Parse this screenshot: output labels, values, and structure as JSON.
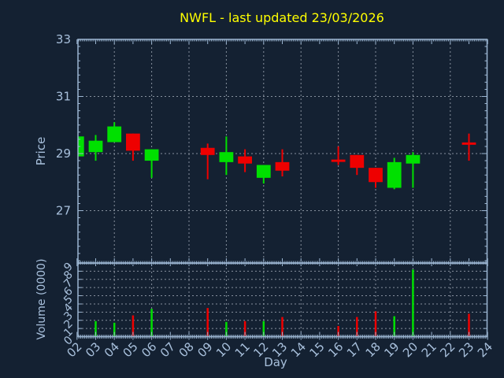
{
  "title": "NWFL - last updated 23/03/2026",
  "colors": {
    "background": "#142132",
    "axis": "#9cb6d2",
    "tick_label": "#a8c0dc",
    "title": "#ffff00",
    "grid": "#9aa4b0",
    "up": "#00e000",
    "down": "#ee0000"
  },
  "axes": {
    "x": {
      "label": "Day",
      "tick_labels": [
        "02",
        "03",
        "04",
        "05",
        "06",
        "07",
        "08",
        "09",
        "10",
        "11",
        "12",
        "13",
        "14",
        "15",
        "16",
        "17",
        "18",
        "19",
        "20",
        "21",
        "22",
        "23",
        "24"
      ],
      "tick_days": [
        2,
        3,
        4,
        5,
        6,
        7,
        8,
        9,
        10,
        11,
        12,
        13,
        14,
        15,
        16,
        17,
        18,
        19,
        20,
        21,
        22,
        23,
        24
      ],
      "gridline_days": [
        4,
        6,
        8,
        10,
        12,
        14,
        16,
        18,
        20,
        22
      ]
    },
    "price": {
      "label": "Price",
      "ticks": [
        27,
        29,
        31,
        33
      ],
      "gridline_values": [
        27,
        29,
        31
      ],
      "range": [
        25.2,
        33.0
      ]
    },
    "volume": {
      "label": "Volume (0000)",
      "ticks": [
        0,
        1,
        2,
        3,
        4,
        5,
        6,
        7,
        8,
        9
      ],
      "gridline_values": [
        1,
        2,
        3,
        4,
        5,
        6,
        7,
        8
      ],
      "range": [
        0,
        9
      ]
    }
  },
  "chart_data": [
    {
      "type": "candlestick",
      "name": "price",
      "x_unit": "day of 03/2026",
      "series": [
        {
          "day": 2,
          "open": 28.9,
          "high": 29.6,
          "low": 28.9,
          "close": 29.6,
          "color": "up"
        },
        {
          "day": 3,
          "open": 29.05,
          "high": 29.65,
          "low": 28.75,
          "close": 29.45,
          "color": "up"
        },
        {
          "day": 4,
          "open": 29.4,
          "high": 30.1,
          "low": 29.4,
          "close": 29.95,
          "color": "up"
        },
        {
          "day": 5,
          "open": 29.7,
          "high": 29.7,
          "low": 28.75,
          "close": 29.1,
          "color": "down"
        },
        {
          "day": 6,
          "open": 28.75,
          "high": 29.15,
          "low": 28.15,
          "close": 29.15,
          "color": "up"
        },
        {
          "day": 9,
          "open": 29.2,
          "high": 29.35,
          "low": 28.1,
          "close": 28.95,
          "color": "down"
        },
        {
          "day": 10,
          "open": 28.7,
          "high": 29.6,
          "low": 28.25,
          "close": 29.05,
          "color": "up"
        },
        {
          "day": 11,
          "open": 28.9,
          "high": 29.15,
          "low": 28.35,
          "close": 28.65,
          "color": "down"
        },
        {
          "day": 12,
          "open": 28.15,
          "high": 28.6,
          "low": 27.95,
          "close": 28.6,
          "color": "up"
        },
        {
          "day": 13,
          "open": 28.7,
          "high": 29.15,
          "low": 28.2,
          "close": 28.4,
          "color": "down"
        },
        {
          "day": 16,
          "open": 28.75,
          "high": 29.25,
          "low": 28.6,
          "close": 28.75,
          "color": "down"
        },
        {
          "day": 17,
          "open": 28.95,
          "high": 28.95,
          "low": 28.25,
          "close": 28.5,
          "color": "down"
        },
        {
          "day": 18,
          "open": 28.5,
          "high": 28.5,
          "low": 27.8,
          "close": 28.0,
          "color": "down"
        },
        {
          "day": 19,
          "open": 27.8,
          "high": 28.85,
          "low": 27.75,
          "close": 28.7,
          "color": "up"
        },
        {
          "day": 20,
          "open": 28.65,
          "high": 29.05,
          "low": 27.8,
          "close": 28.95,
          "color": "up"
        },
        {
          "day": 23,
          "open": 29.35,
          "high": 29.7,
          "low": 28.75,
          "close": 29.35,
          "color": "down"
        }
      ]
    },
    {
      "type": "bar",
      "name": "volume",
      "unit": "0000",
      "series": [
        {
          "day": 3,
          "value": 1.9,
          "color": "up"
        },
        {
          "day": 4,
          "value": 1.7,
          "color": "up"
        },
        {
          "day": 5,
          "value": 2.6,
          "color": "down"
        },
        {
          "day": 6,
          "value": 3.4,
          "color": "up"
        },
        {
          "day": 9,
          "value": 3.5,
          "color": "down"
        },
        {
          "day": 10,
          "value": 1.8,
          "color": "up"
        },
        {
          "day": 11,
          "value": 1.9,
          "color": "down"
        },
        {
          "day": 12,
          "value": 1.9,
          "color": "up"
        },
        {
          "day": 13,
          "value": 2.4,
          "color": "down"
        },
        {
          "day": 16,
          "value": 1.3,
          "color": "down"
        },
        {
          "day": 17,
          "value": 2.4,
          "color": "down"
        },
        {
          "day": 18,
          "value": 3.1,
          "color": "down"
        },
        {
          "day": 19,
          "value": 2.5,
          "color": "up"
        },
        {
          "day": 20,
          "value": 8.2,
          "color": "up"
        },
        {
          "day": 23,
          "value": 2.8,
          "color": "down"
        }
      ]
    }
  ]
}
